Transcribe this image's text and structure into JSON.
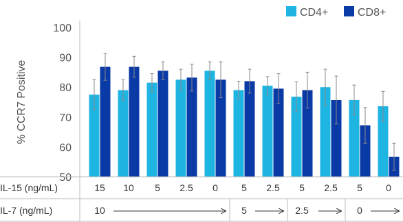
{
  "chart_data": {
    "type": "bar",
    "title": "",
    "ylabel": "% CCR7 Positive",
    "ylim": [
      50,
      100
    ],
    "yticks": [
      50,
      60,
      70,
      80,
      90,
      100
    ],
    "grid": false,
    "legend_position": "top-right",
    "series": [
      {
        "name": "CD4+",
        "color": "#1fb5e3",
        "values": [
          77.5,
          79,
          81.5,
          82.5,
          85.5,
          79,
          80.5,
          76.8,
          80,
          75.7,
          73.6
        ],
        "errors": [
          5,
          3.5,
          3,
          3.5,
          3,
          3,
          3,
          5,
          6,
          5,
          5
        ]
      },
      {
        "name": "CD8+",
        "color": "#0a3aa6",
        "values": [
          86.8,
          86.8,
          85.5,
          83.2,
          82.5,
          82,
          79.5,
          79,
          75.7,
          67.2,
          56.7
        ],
        "errors": [
          4.5,
          3.5,
          3,
          4.5,
          6,
          4,
          5,
          6,
          8,
          6,
          4.5
        ]
      }
    ],
    "rows": [
      {
        "label": "IL-15 (ng/mL)",
        "cells": [
          "15",
          "10",
          "5",
          "2.5",
          "0",
          "5",
          "2.5",
          "5",
          "2.5",
          "5",
          "0"
        ]
      },
      {
        "label": "IL-7 (ng/mL)",
        "groups": [
          {
            "label": "10",
            "span": 5
          },
          {
            "label": "5",
            "span": 2
          },
          {
            "label": "2.5",
            "span": 2
          },
          {
            "label": "0",
            "span": 2
          }
        ]
      }
    ]
  }
}
